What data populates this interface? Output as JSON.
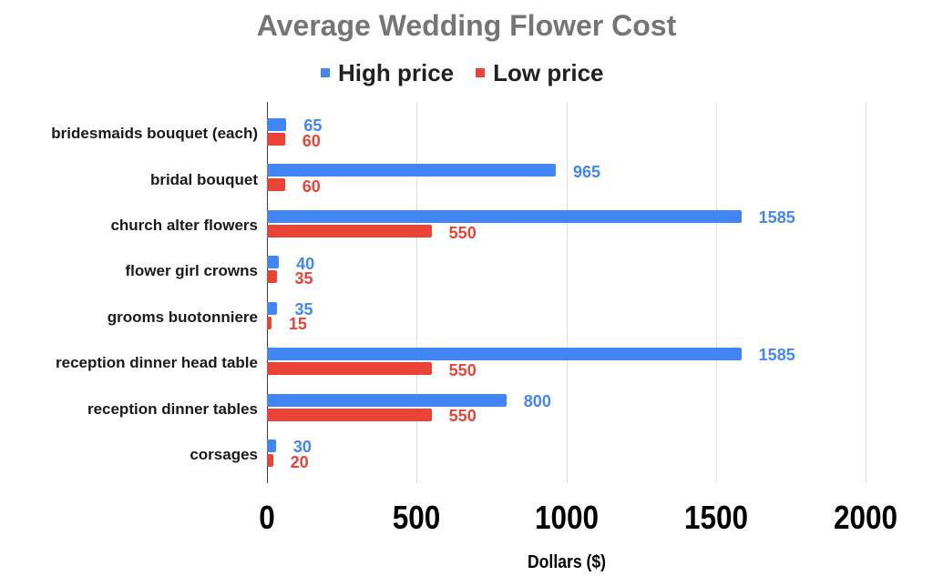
{
  "chart_data": {
    "type": "bar",
    "orientation": "horizontal",
    "title": "Average Wedding Flower Cost",
    "xlabel": "Dollars ($)",
    "ylabel": "",
    "categories": [
      "bridesmaids bouquet (each)",
      "bridal bouquet",
      "church alter flowers",
      "flower girl crowns",
      "grooms buotonniere",
      "reception dinner head table",
      "reception dinner tables",
      "corsages"
    ],
    "series": [
      {
        "name": "High price",
        "color": "#4285F4",
        "values": [
          65,
          965,
          1585,
          40,
          35,
          1585,
          800,
          30
        ]
      },
      {
        "name": "Low price",
        "color": "#EA4335",
        "values": [
          60,
          60,
          550,
          35,
          15,
          550,
          550,
          20
        ]
      }
    ],
    "xlim": [
      0,
      2000
    ],
    "xticks": [
      0,
      500,
      1000,
      1500,
      2000
    ],
    "xtick_labels": [
      "0",
      "500",
      "1000",
      "1500",
      "2000"
    ],
    "grid": true,
    "legend_position": "top",
    "data_labels": true
  },
  "colors": {
    "title": "#757575",
    "high_price": "#4285F4",
    "low_price": "#EA4335"
  }
}
